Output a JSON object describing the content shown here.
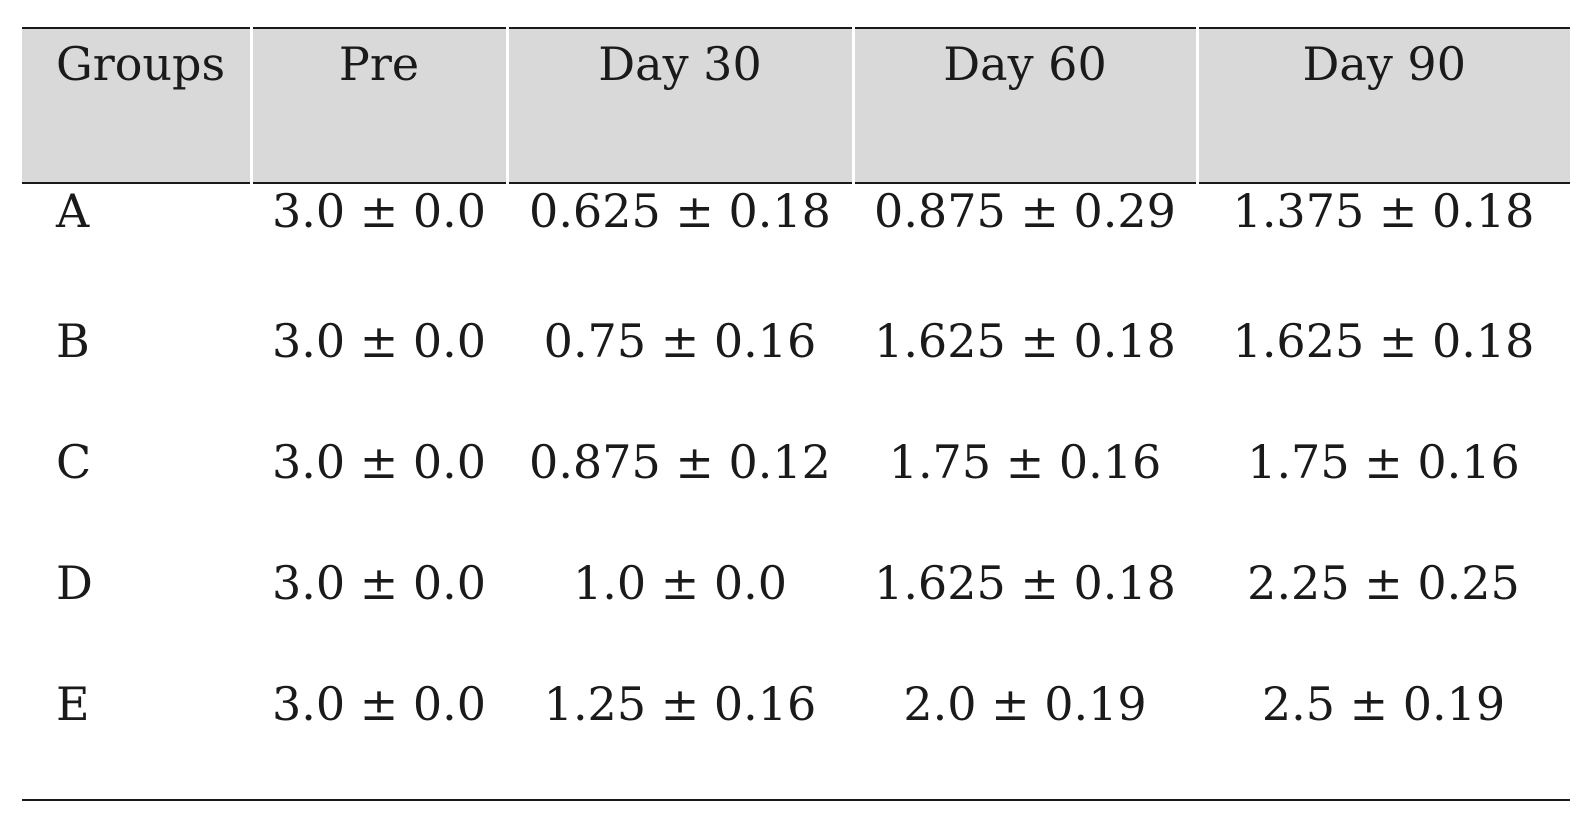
{
  "table": {
    "headers": [
      "Groups",
      "Pre",
      "Day 30",
      "Day 60",
      "Day 90"
    ],
    "rows": [
      [
        "A",
        "3.0 ± 0.0",
        "0.625 ± 0.18",
        "0.875 ± 0.29",
        "1.375 ± 0.18"
      ],
      [
        "B",
        "3.0 ± 0.0",
        "0.75 ± 0.16",
        "1.625 ± 0.18",
        "1.625 ± 0.18"
      ],
      [
        "C",
        "3.0 ± 0.0",
        "0.875 ± 0.12",
        "1.75 ± 0.16",
        "1.75 ± 0.16"
      ],
      [
        "D",
        "3.0 ± 0.0",
        "1.0 ± 0.0",
        "1.625 ± 0.18",
        "2.25 ± 0.25"
      ],
      [
        "E",
        "3.0 ± 0.0",
        "1.25 ± 0.16",
        "2.0 ± 0.19",
        "2.5 ± 0.19"
      ]
    ],
    "header_background": "#d9d9d9",
    "rule_color": "#1a1a1a"
  }
}
